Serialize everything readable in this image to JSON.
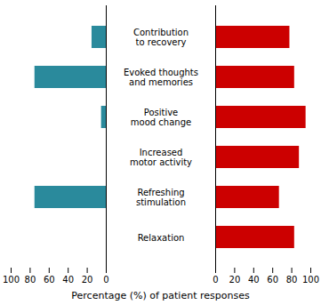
{
  "chart_data": [
    {
      "type": "bar",
      "orientation": "horizontal",
      "categories": [
        "Relaxation",
        "Refreshing\nstimulation",
        "Increased\nmotor activity",
        "Positive\nmood change",
        "Evoked thoughts\nand memories",
        "Contribution\nto recovery"
      ],
      "values": [
        0,
        75,
        0,
        5,
        75,
        15
      ],
      "color": "#2a8a9c",
      "xlim": [
        100,
        0
      ],
      "xticks": [
        100,
        80,
        60,
        40,
        20,
        0
      ],
      "xlabel": "Percentage (%) of patient responses"
    },
    {
      "type": "bar",
      "orientation": "horizontal",
      "categories": [
        "Relaxation",
        "Refreshing\nstimulation",
        "Increased\nmotor activity",
        "Positive\nmood change",
        "Evoked thoughts\nand memories",
        "Contribution\nto recovery"
      ],
      "values": [
        83,
        67,
        88,
        95,
        83,
        78
      ],
      "color": "#cc0000",
      "xlim": [
        0,
        100
      ],
      "xticks": [
        0,
        20,
        40,
        60,
        80,
        100
      ]
    }
  ]
}
